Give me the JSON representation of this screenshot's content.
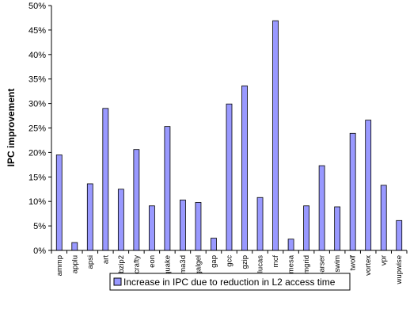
{
  "chart_data": {
    "type": "bar",
    "title": "",
    "xlabel": "",
    "ylabel": "IPC improvement",
    "ylim": [
      0,
      50
    ],
    "yticks": [
      "0%",
      "5%",
      "10%",
      "15%",
      "20%",
      "25%",
      "30%",
      "35%",
      "40%",
      "45%",
      "50%"
    ],
    "grid": false,
    "legend_position": "bottom",
    "categories": [
      "ammp",
      "applu",
      "apsi",
      "art",
      "bzip2",
      "crafty",
      "eon",
      "equake",
      "fma3d",
      "galgel",
      "gap",
      "gcc",
      "gzip",
      "lucas",
      "mcf",
      "mesa",
      "mgrid",
      "parser",
      "swim",
      "twolf",
      "vortex",
      "vpr",
      "wupwise"
    ],
    "series": [
      {
        "name": "Increase in IPC due to reduction in L2 access time",
        "color": "#9999ff",
        "values": [
          19.5,
          1.6,
          13.6,
          29.0,
          12.5,
          20.6,
          9.1,
          25.3,
          10.3,
          9.8,
          2.5,
          29.9,
          33.6,
          10.8,
          46.9,
          2.3,
          9.1,
          17.3,
          8.9,
          23.9,
          26.6,
          13.3,
          6.1
        ]
      }
    ]
  }
}
